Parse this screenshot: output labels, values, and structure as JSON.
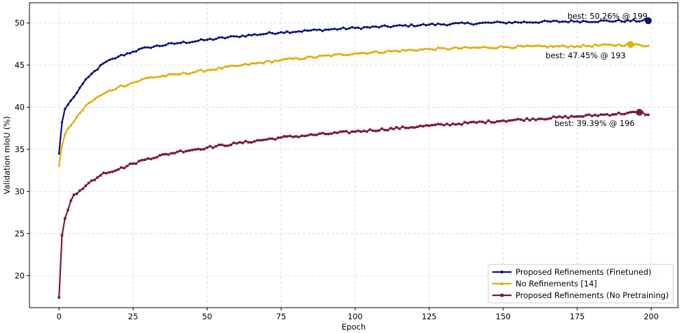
{
  "chart_data": {
    "type": "line",
    "title": "",
    "xlabel": "Epoch",
    "ylabel": "Validation mIoU (%)",
    "xlim": [
      -10,
      209
    ],
    "ylim": [
      16.2,
      52.4
    ],
    "xticks": [
      0,
      25,
      50,
      75,
      100,
      125,
      150,
      175,
      200
    ],
    "yticks": [
      20,
      25,
      30,
      35,
      40,
      45,
      50
    ],
    "grid": true,
    "legend_position": "lower-right",
    "series": [
      {
        "name": "Proposed Refinements (Finetuned)",
        "color": "#0b0f7d",
        "marker": "circle",
        "anchors": [
          [
            0,
            34.5
          ],
          [
            1,
            38.2
          ],
          [
            2,
            39.8
          ],
          [
            3,
            40.3
          ],
          [
            5,
            41.2
          ],
          [
            7,
            42.3
          ],
          [
            10,
            43.6
          ],
          [
            15,
            45.2
          ],
          [
            20,
            46.0
          ],
          [
            25,
            46.6
          ],
          [
            30,
            47.1
          ],
          [
            40,
            47.6
          ],
          [
            50,
            48.0
          ],
          [
            60,
            48.4
          ],
          [
            75,
            48.9
          ],
          [
            100,
            49.4
          ],
          [
            125,
            49.8
          ],
          [
            150,
            50.05
          ],
          [
            175,
            50.2
          ],
          [
            199,
            50.26
          ]
        ],
        "best": {
          "epoch": 199,
          "value": 50.26
        },
        "annotation": "best: 50.26% @ 199"
      },
      {
        "name": "No Refinements [14]",
        "color": "#e0ac0c",
        "marker": "triangle",
        "anchors": [
          [
            0,
            33.1
          ],
          [
            1,
            35.4
          ],
          [
            2,
            36.8
          ],
          [
            3,
            37.5
          ],
          [
            5,
            38.3
          ],
          [
            7,
            39.3
          ],
          [
            10,
            40.5
          ],
          [
            15,
            41.6
          ],
          [
            20,
            42.4
          ],
          [
            25,
            42.9
          ],
          [
            30,
            43.5
          ],
          [
            40,
            43.9
          ],
          [
            50,
            44.4
          ],
          [
            60,
            44.9
          ],
          [
            75,
            45.6
          ],
          [
            100,
            46.4
          ],
          [
            125,
            46.9
          ],
          [
            150,
            47.15
          ],
          [
            175,
            47.25
          ],
          [
            193,
            47.45
          ],
          [
            199,
            47.3
          ]
        ],
        "best": {
          "epoch": 193,
          "value": 47.45
        },
        "annotation": "best: 47.45% @ 193"
      },
      {
        "name": "Proposed Refinements (No Pretraining)",
        "color": "#7a1a3d",
        "marker": "square",
        "anchors": [
          [
            0,
            17.4
          ],
          [
            1,
            24.8
          ],
          [
            2,
            26.8
          ],
          [
            3,
            27.8
          ],
          [
            4,
            28.9
          ],
          [
            5,
            29.6
          ],
          [
            8,
            30.3
          ],
          [
            10,
            31.0
          ],
          [
            15,
            32.2
          ],
          [
            20,
            32.6
          ],
          [
            25,
            33.3
          ],
          [
            30,
            33.9
          ],
          [
            40,
            34.7
          ],
          [
            50,
            35.2
          ],
          [
            60,
            35.7
          ],
          [
            75,
            36.4
          ],
          [
            100,
            37.1
          ],
          [
            125,
            37.8
          ],
          [
            150,
            38.4
          ],
          [
            175,
            38.9
          ],
          [
            196,
            39.39
          ],
          [
            199,
            39.1
          ]
        ],
        "best": {
          "epoch": 196,
          "value": 39.39
        },
        "annotation": "best: 39.39% @ 196"
      }
    ]
  }
}
